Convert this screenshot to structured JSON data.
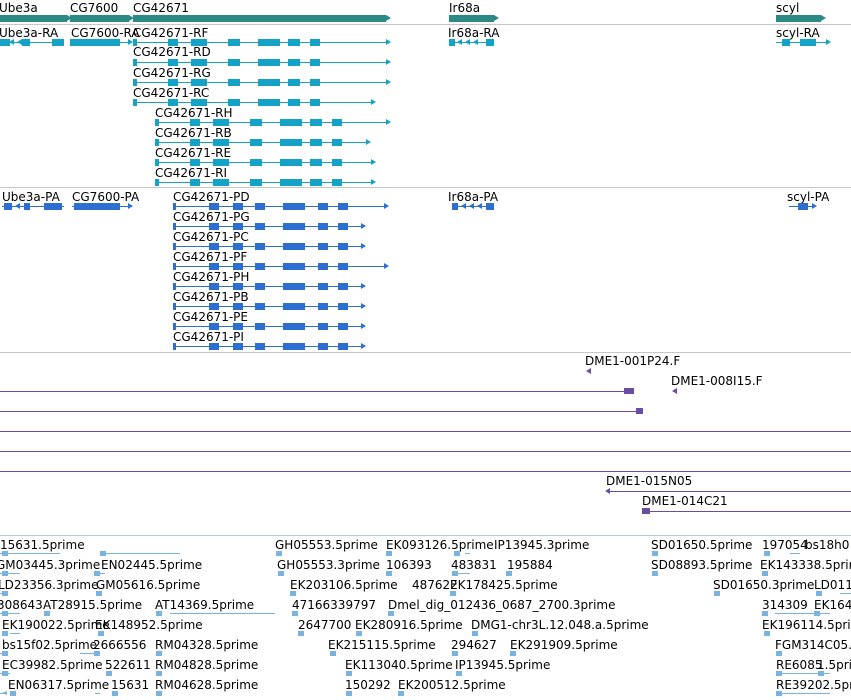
{
  "colors": {
    "gene": "#2c8a86",
    "rna_transcript": "#14a3c7",
    "protein_transcript": "#2d6fd0",
    "clone": "#6a4ea3",
    "est": "#79b3e0"
  },
  "genes": [
    "Ube3a",
    "CG7600",
    "CG42671",
    "Ir68a",
    "scyl"
  ],
  "rna_transcripts": [
    "Ube3a-RA",
    "CG7600-RA",
    "CG42671-RF",
    "CG42671-RD",
    "CG42671-RG",
    "CG42671-RC",
    "CG42671-RH",
    "CG42671-RB",
    "CG42671-RE",
    "CG42671-RI",
    "Ir68a-RA",
    "scyl-RA"
  ],
  "protein_transcripts": [
    "Ube3a-PA",
    "CG7600-PA",
    "CG42671-PD",
    "CG42671-PG",
    "CG42671-PC",
    "CG42671-PF",
    "CG42671-PH",
    "CG42671-PB",
    "CG42671-PE",
    "CG42671-PI",
    "Ir68a-PA",
    "scyl-PA"
  ],
  "clones": [
    "DME1-001P24.F",
    "DME1-008I15.F",
    "DME1-015N05",
    "DME1-014C21"
  ],
  "est_labels": [
    "15631.5prime",
    "GH05553.5prime",
    "EK093126.5prime",
    "IP13945.3prime",
    "SD01650.5prime",
    "197054",
    "bs18h0",
    "GM03445.3prime",
    "EN02445.5prime",
    "GH05553.3prime",
    "106393",
    "483831",
    "195884",
    "SD08893.5prime",
    "EK143338.5prime",
    "LD23356.3prime",
    "GM05616.5prime",
    "EK203106.5prime",
    "487622",
    "EK178425.5prime",
    "SD01650.3prime",
    "LD011",
    "308643",
    "AT28915.5prime",
    "AT14369.5prime",
    "47166339797",
    "Dmel_dig_012436_0687_2700.3prime",
    "314309",
    "EK164",
    "EK190022.5prime",
    "EK148952.5prime",
    "2647700",
    "EK280916.5prime",
    "DMG1-chr3L.12.048.a.5prime",
    "EK196114.5prime",
    "bs15f02.5prime",
    "2666556",
    "RM04328.5prime",
    "EK215115.5prime",
    "294627",
    "EK291909.5prime",
    "FGM314C05.",
    "EC39982.5prime",
    "522611",
    "RM04828.5prime",
    "EK113040.5prime",
    "IP13945.5prime",
    "RE6085",
    "1.5prime",
    "EN06317.5prime",
    "15631",
    "RM04628.5prime",
    "150292",
    "EK200512.5prime",
    "RE39202.5prime"
  ]
}
